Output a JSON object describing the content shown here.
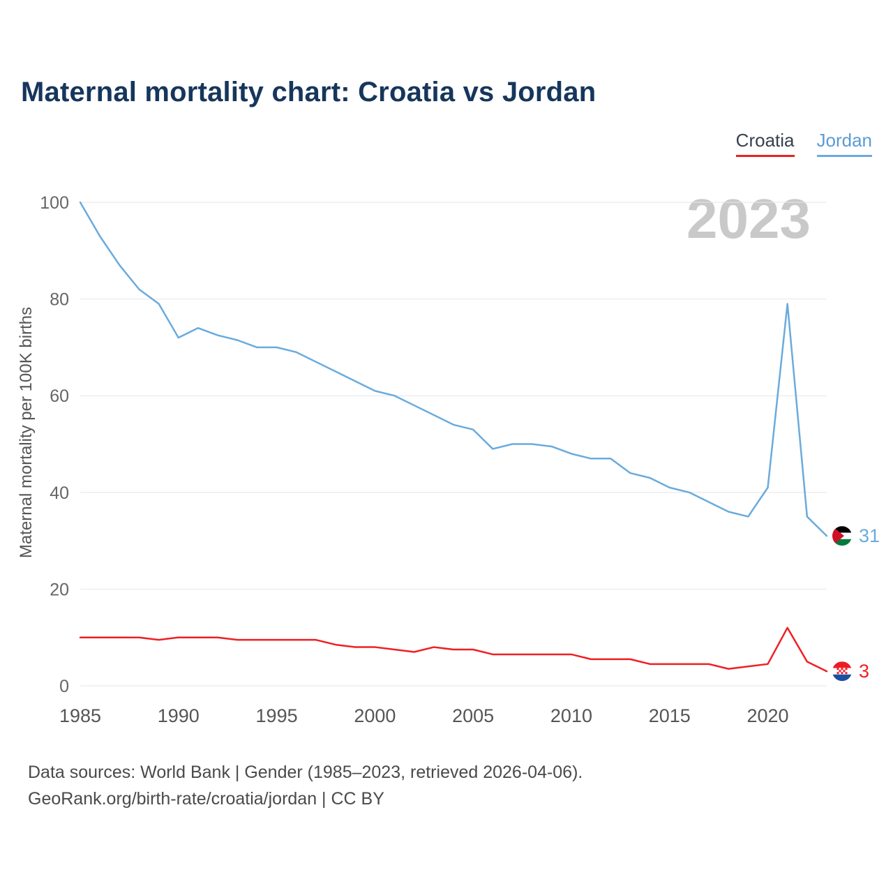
{
  "title": "Maternal mortality chart: Croatia vs Jordan",
  "watermark": "2023",
  "ylabel": "Maternal mortality per 100K births",
  "legend": {
    "croatia": {
      "label": "Croatia",
      "color": "#e8231f"
    },
    "jordan": {
      "label": "Jordan",
      "color": "#6aabdd"
    }
  },
  "footer": {
    "line1": "Data sources: World Bank | Gender (1985–2023, retrieved 2026-04-06).",
    "line2": "GeoRank.org/birth-rate/croatia/jordan | CC BY"
  },
  "chart_data": {
    "type": "line",
    "title": "Maternal mortality chart: Croatia vs Jordan",
    "xlabel": "",
    "ylabel": "Maternal mortality per 100K births",
    "ylim": [
      0,
      100
    ],
    "yticks": [
      0,
      20,
      40,
      60,
      80,
      100
    ],
    "xticks": [
      1985,
      1990,
      1995,
      2000,
      2005,
      2010,
      2015,
      2020
    ],
    "grid": true,
    "legend_position": "top-right",
    "x": [
      1985,
      1986,
      1987,
      1988,
      1989,
      1990,
      1991,
      1992,
      1993,
      1994,
      1995,
      1996,
      1997,
      1998,
      1999,
      2000,
      2001,
      2002,
      2003,
      2004,
      2005,
      2006,
      2007,
      2008,
      2009,
      2010,
      2011,
      2012,
      2013,
      2014,
      2015,
      2016,
      2017,
      2018,
      2019,
      2020,
      2021,
      2022,
      2023
    ],
    "series": [
      {
        "name": "Jordan",
        "color": "#6aabdd",
        "flag": "flag-jordan",
        "end_label": "31",
        "values": [
          100,
          93,
          87,
          82,
          79,
          72,
          74,
          72.5,
          71.5,
          70,
          70,
          69,
          67,
          65,
          63,
          61,
          60,
          58,
          56,
          54,
          53,
          49,
          50,
          50,
          49.5,
          48,
          47,
          47,
          44,
          43,
          41,
          40,
          38,
          36,
          35,
          41,
          79,
          35,
          31
        ]
      },
      {
        "name": "Croatia",
        "color": "#ee2024",
        "flag": "flag-croatia",
        "end_label": "3",
        "values": [
          10,
          10,
          10,
          10,
          9.5,
          10,
          10,
          10,
          9.5,
          9.5,
          9.5,
          9.5,
          9.5,
          8.5,
          8,
          8,
          7.5,
          7,
          8,
          7.5,
          7.5,
          6.5,
          6.5,
          6.5,
          6.5,
          6.5,
          5.5,
          5.5,
          5.5,
          4.5,
          4.5,
          4.5,
          4.5,
          3.5,
          4,
          4.5,
          12,
          5,
          3
        ]
      }
    ]
  }
}
